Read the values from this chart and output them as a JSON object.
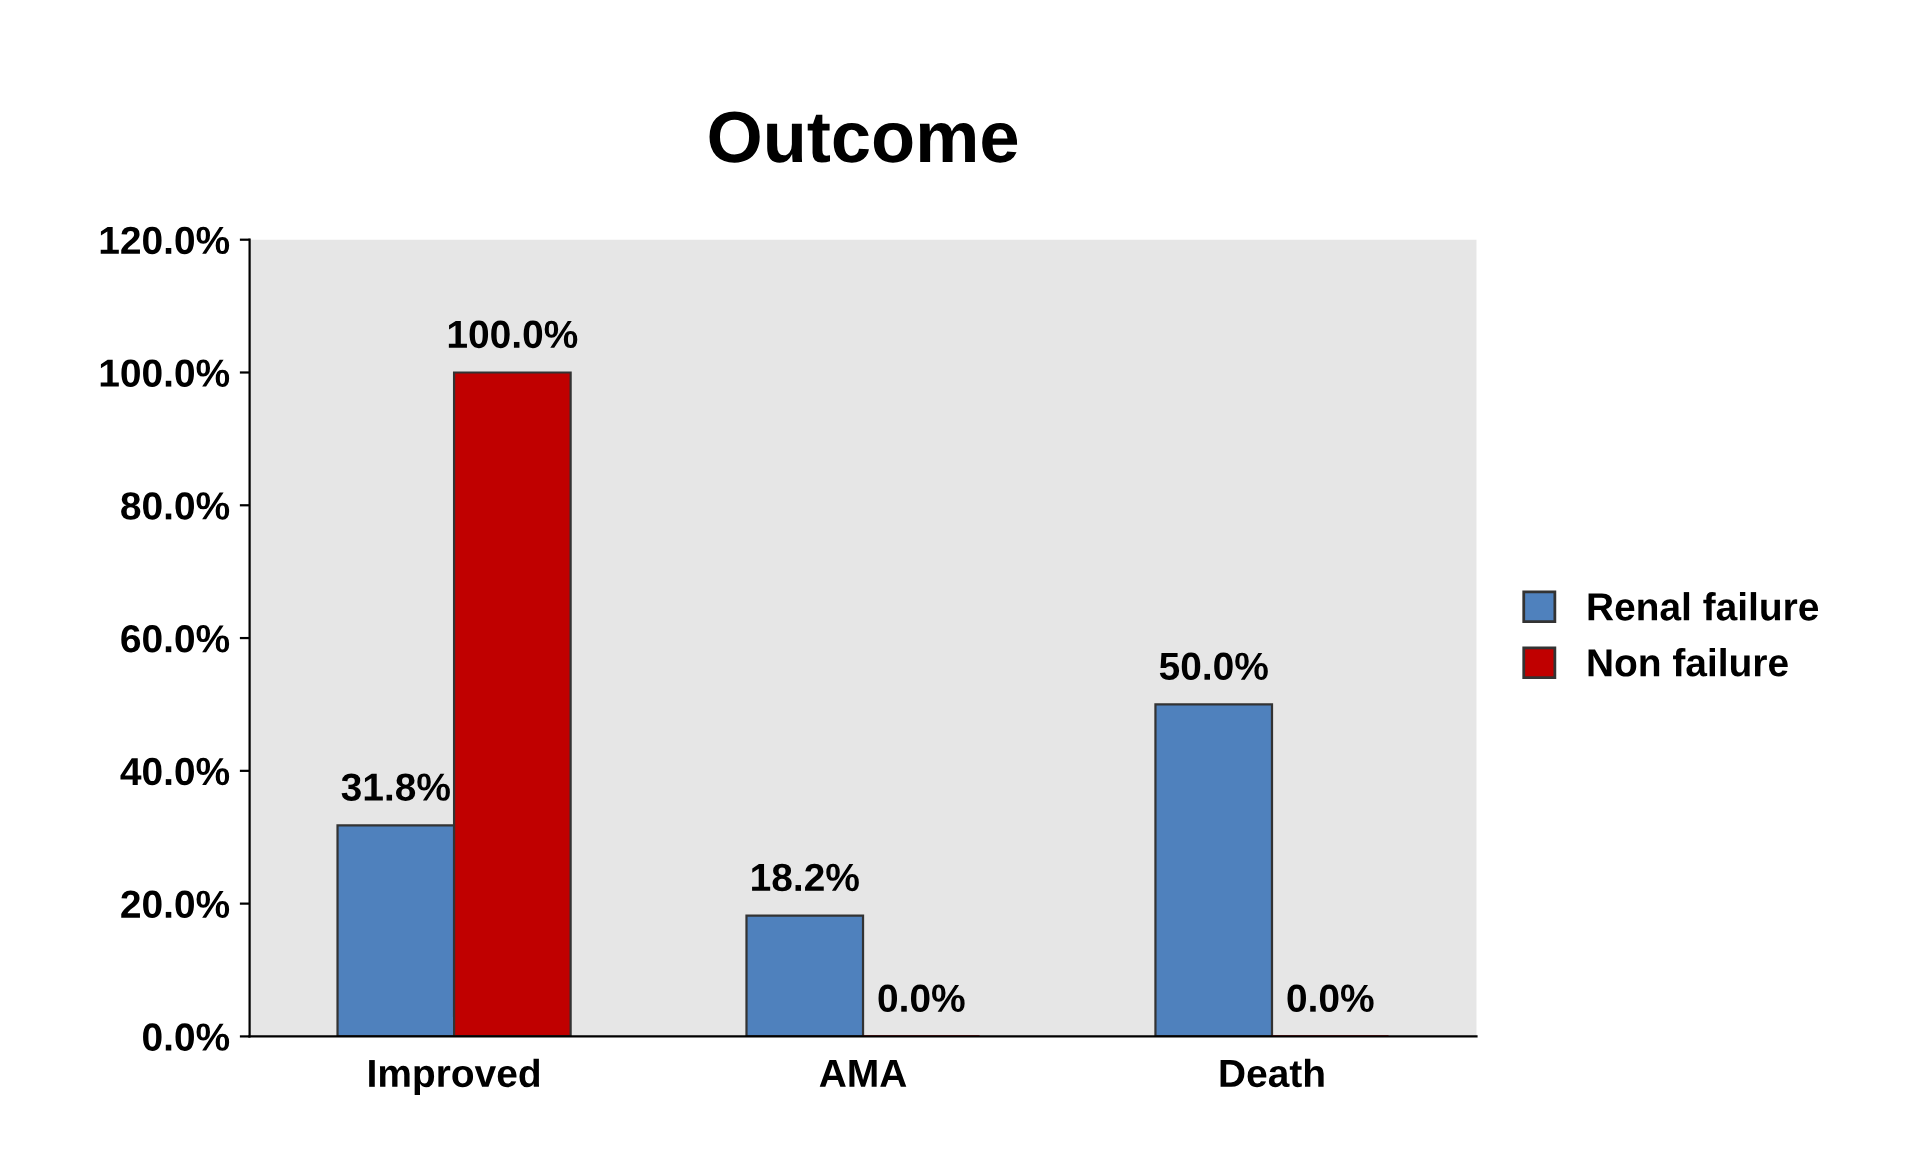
{
  "chart_data": {
    "type": "bar",
    "title": "Outcome",
    "categories": [
      "Improved",
      "AMA",
      "Death"
    ],
    "series": [
      {
        "name": "Renal failure",
        "color": "#4f81bd",
        "values": [
          31.8,
          18.2,
          50.0
        ],
        "value_labels": [
          "31.8%",
          "18.2%",
          "50.0%"
        ]
      },
      {
        "name": "Non failure",
        "color": "#c00000",
        "values": [
          100.0,
          0.0,
          0.0
        ],
        "value_labels": [
          "100.0%",
          "0.0%",
          "0.0%"
        ]
      }
    ],
    "ylim": [
      0,
      120
    ],
    "yticks": [
      {
        "value": 0,
        "label": "0.0%"
      },
      {
        "value": 20,
        "label": "20.0%"
      },
      {
        "value": 40,
        "label": "40.0%"
      },
      {
        "value": 60,
        "label": "60.0%"
      },
      {
        "value": 80,
        "label": "80.0%"
      },
      {
        "value": 100,
        "label": "100.0%"
      },
      {
        "value": 120,
        "label": "120.0%"
      }
    ],
    "grid": false,
    "legend": "right"
  }
}
